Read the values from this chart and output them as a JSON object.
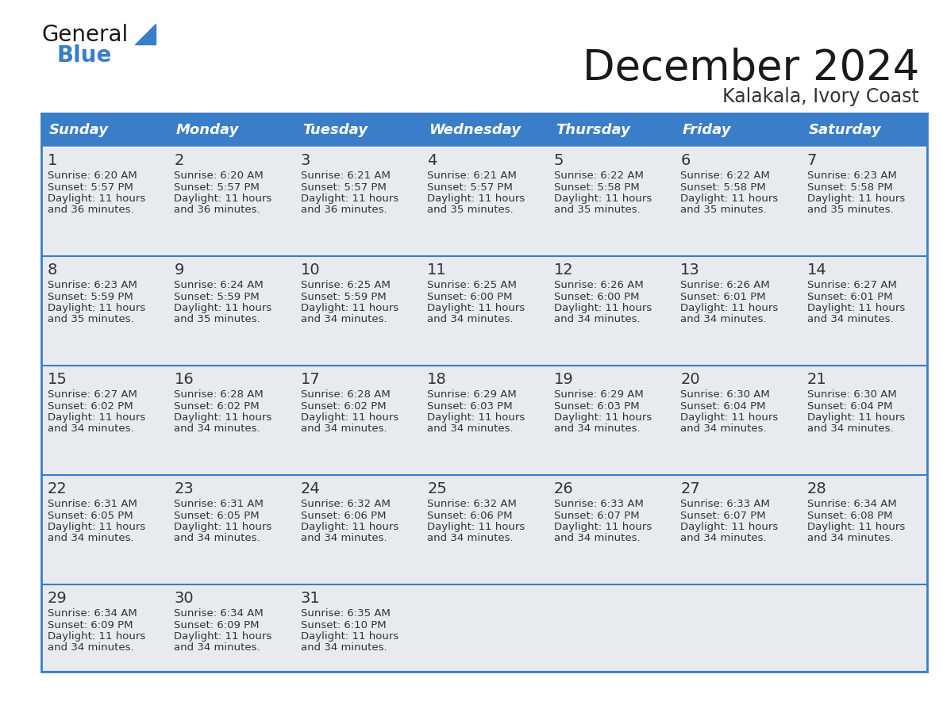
{
  "title": "December 2024",
  "subtitle": "Kalakala, Ivory Coast",
  "days_of_week": [
    "Sunday",
    "Monday",
    "Tuesday",
    "Wednesday",
    "Thursday",
    "Friday",
    "Saturday"
  ],
  "header_bg": "#3A7DC9",
  "header_text": "#FFFFFF",
  "row_bg": "#E8EAED",
  "cell_text": "#333333",
  "border_color": "#3A7DC9",
  "divider_color": "#3A7DC9",
  "title_color": "#1a1a1a",
  "subtitle_color": "#333333",
  "calendar": [
    [
      {
        "day": 1,
        "sunrise": "6:20 AM",
        "sunset": "5:57 PM",
        "daylight": "11 hours and 36 minutes."
      },
      {
        "day": 2,
        "sunrise": "6:20 AM",
        "sunset": "5:57 PM",
        "daylight": "11 hours and 36 minutes."
      },
      {
        "day": 3,
        "sunrise": "6:21 AM",
        "sunset": "5:57 PM",
        "daylight": "11 hours and 36 minutes."
      },
      {
        "day": 4,
        "sunrise": "6:21 AM",
        "sunset": "5:57 PM",
        "daylight": "11 hours and 35 minutes."
      },
      {
        "day": 5,
        "sunrise": "6:22 AM",
        "sunset": "5:58 PM",
        "daylight": "11 hours and 35 minutes."
      },
      {
        "day": 6,
        "sunrise": "6:22 AM",
        "sunset": "5:58 PM",
        "daylight": "11 hours and 35 minutes."
      },
      {
        "day": 7,
        "sunrise": "6:23 AM",
        "sunset": "5:58 PM",
        "daylight": "11 hours and 35 minutes."
      }
    ],
    [
      {
        "day": 8,
        "sunrise": "6:23 AM",
        "sunset": "5:59 PM",
        "daylight": "11 hours and 35 minutes."
      },
      {
        "day": 9,
        "sunrise": "6:24 AM",
        "sunset": "5:59 PM",
        "daylight": "11 hours and 35 minutes."
      },
      {
        "day": 10,
        "sunrise": "6:25 AM",
        "sunset": "5:59 PM",
        "daylight": "11 hours and 34 minutes."
      },
      {
        "day": 11,
        "sunrise": "6:25 AM",
        "sunset": "6:00 PM",
        "daylight": "11 hours and 34 minutes."
      },
      {
        "day": 12,
        "sunrise": "6:26 AM",
        "sunset": "6:00 PM",
        "daylight": "11 hours and 34 minutes."
      },
      {
        "day": 13,
        "sunrise": "6:26 AM",
        "sunset": "6:01 PM",
        "daylight": "11 hours and 34 minutes."
      },
      {
        "day": 14,
        "sunrise": "6:27 AM",
        "sunset": "6:01 PM",
        "daylight": "11 hours and 34 minutes."
      }
    ],
    [
      {
        "day": 15,
        "sunrise": "6:27 AM",
        "sunset": "6:02 PM",
        "daylight": "11 hours and 34 minutes."
      },
      {
        "day": 16,
        "sunrise": "6:28 AM",
        "sunset": "6:02 PM",
        "daylight": "11 hours and 34 minutes."
      },
      {
        "day": 17,
        "sunrise": "6:28 AM",
        "sunset": "6:02 PM",
        "daylight": "11 hours and 34 minutes."
      },
      {
        "day": 18,
        "sunrise": "6:29 AM",
        "sunset": "6:03 PM",
        "daylight": "11 hours and 34 minutes."
      },
      {
        "day": 19,
        "sunrise": "6:29 AM",
        "sunset": "6:03 PM",
        "daylight": "11 hours and 34 minutes."
      },
      {
        "day": 20,
        "sunrise": "6:30 AM",
        "sunset": "6:04 PM",
        "daylight": "11 hours and 34 minutes."
      },
      {
        "day": 21,
        "sunrise": "6:30 AM",
        "sunset": "6:04 PM",
        "daylight": "11 hours and 34 minutes."
      }
    ],
    [
      {
        "day": 22,
        "sunrise": "6:31 AM",
        "sunset": "6:05 PM",
        "daylight": "11 hours and 34 minutes."
      },
      {
        "day": 23,
        "sunrise": "6:31 AM",
        "sunset": "6:05 PM",
        "daylight": "11 hours and 34 minutes."
      },
      {
        "day": 24,
        "sunrise": "6:32 AM",
        "sunset": "6:06 PM",
        "daylight": "11 hours and 34 minutes."
      },
      {
        "day": 25,
        "sunrise": "6:32 AM",
        "sunset": "6:06 PM",
        "daylight": "11 hours and 34 minutes."
      },
      {
        "day": 26,
        "sunrise": "6:33 AM",
        "sunset": "6:07 PM",
        "daylight": "11 hours and 34 minutes."
      },
      {
        "day": 27,
        "sunrise": "6:33 AM",
        "sunset": "6:07 PM",
        "daylight": "11 hours and 34 minutes."
      },
      {
        "day": 28,
        "sunrise": "6:34 AM",
        "sunset": "6:08 PM",
        "daylight": "11 hours and 34 minutes."
      }
    ],
    [
      {
        "day": 29,
        "sunrise": "6:34 AM",
        "sunset": "6:09 PM",
        "daylight": "11 hours and 34 minutes."
      },
      {
        "day": 30,
        "sunrise": "6:34 AM",
        "sunset": "6:09 PM",
        "daylight": "11 hours and 34 minutes."
      },
      {
        "day": 31,
        "sunrise": "6:35 AM",
        "sunset": "6:10 PM",
        "daylight": "11 hours and 34 minutes."
      },
      null,
      null,
      null,
      null
    ]
  ]
}
